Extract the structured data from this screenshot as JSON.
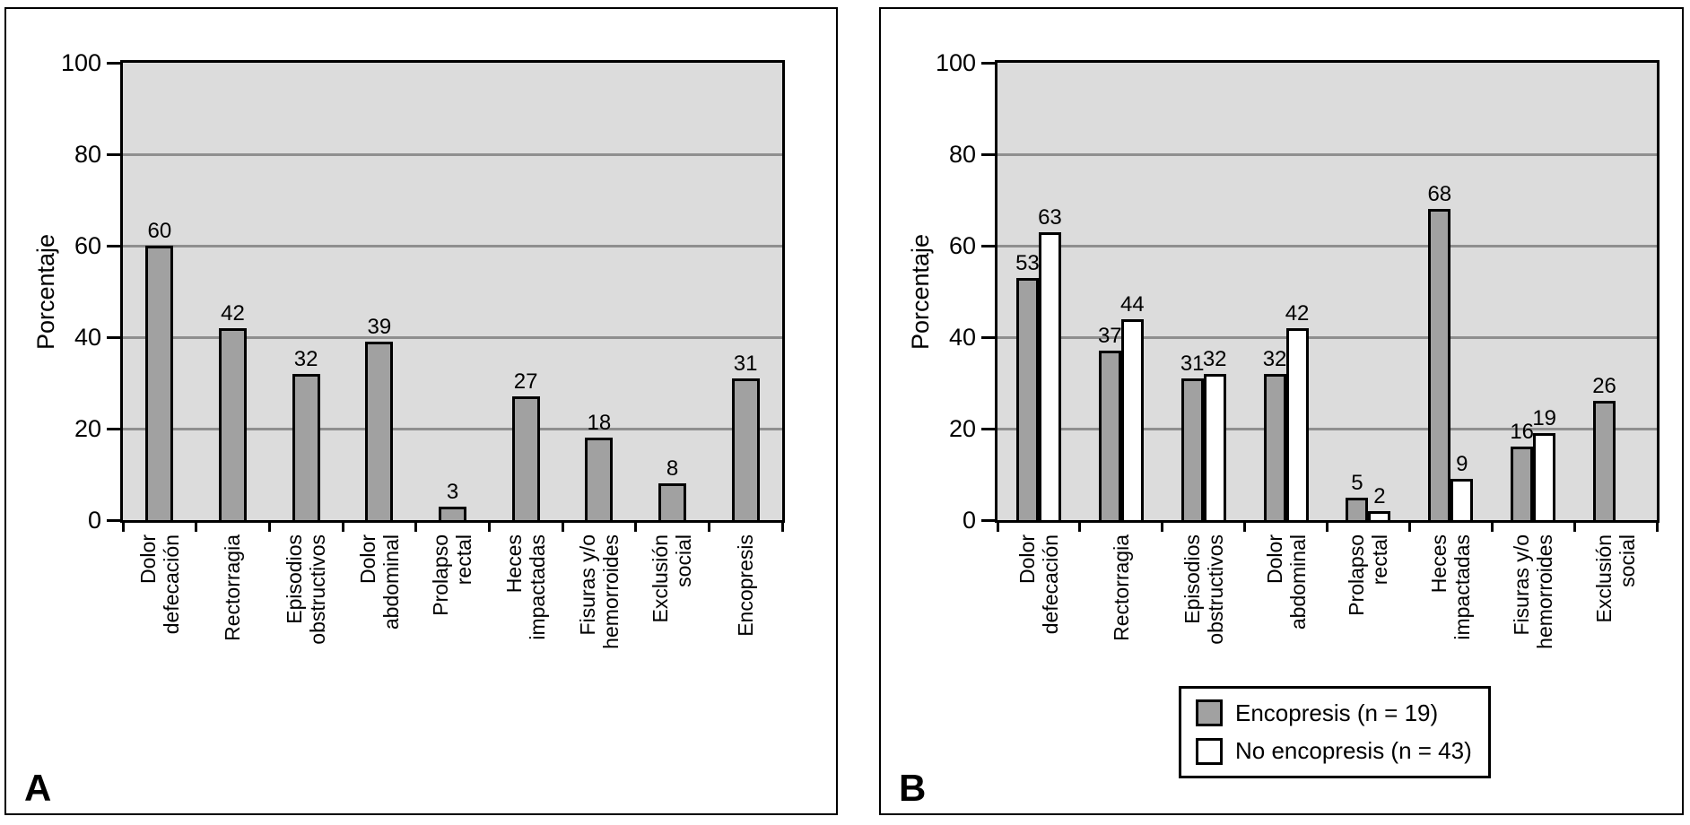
{
  "figure": {
    "panels": [
      {
        "letter": "A"
      },
      {
        "letter": "B"
      }
    ]
  },
  "colors": {
    "plot_background": "#dcdcdc",
    "gridline": "#8f8f8f",
    "bar_gray": "#a1a1a1",
    "bar_white": "#ffffff",
    "axis": "#000000"
  },
  "chart_data": [
    {
      "type": "bar",
      "panel": "A",
      "ylabel": "Porcentaje",
      "ylim": [
        0,
        100
      ],
      "yticks": [
        0,
        20,
        40,
        60,
        80,
        100
      ],
      "grid": "horizontal",
      "legend_position": "none",
      "categories": [
        "Dolor defecación",
        "Rectorragia",
        "Episodios obstructivos",
        "Dolor abdominal",
        "Prolapso rectal",
        "Heces impactadas",
        "Fisuras y/o hemorroides",
        "Exclusión social",
        "Encopresis"
      ],
      "label_lines": [
        [
          "Dolor",
          "defecación"
        ],
        [
          "Rectorragia"
        ],
        [
          "Episodios",
          "obstructivos"
        ],
        [
          "Dolor",
          "abdominal"
        ],
        [
          "Prolapso",
          "rectal"
        ],
        [
          "Heces",
          "impactadas"
        ],
        [
          "Fisuras y/o",
          "hemorroides"
        ],
        [
          "Exclusión",
          "social"
        ],
        [
          "Encopresis"
        ]
      ],
      "values": [
        60,
        42,
        32,
        39,
        3,
        27,
        18,
        8,
        31
      ],
      "bar_color": "#a1a1a1"
    },
    {
      "type": "bar",
      "panel": "B",
      "ylabel": "Porcentaje",
      "ylim": [
        0,
        100
      ],
      "yticks": [
        0,
        20,
        40,
        60,
        80,
        100
      ],
      "grid": "horizontal",
      "legend_position": "bottom-right",
      "categories": [
        "Dolor defecación",
        "Rectorragia",
        "Episodios obstructivos",
        "Dolor abdominal",
        "Prolapso rectal",
        "Heces impactadas",
        "Fisuras y/o hemorroides",
        "Exclusión social"
      ],
      "label_lines": [
        [
          "Dolor",
          "defecación"
        ],
        [
          "Rectorragia"
        ],
        [
          "Episodios",
          "obstructivos"
        ],
        [
          "Dolor",
          "abdominal"
        ],
        [
          "Prolapso",
          "rectal"
        ],
        [
          "Heces",
          "impactadas"
        ],
        [
          "Fisuras y/o",
          "hemorroides"
        ],
        [
          "Exclusión",
          "social"
        ]
      ],
      "series": [
        {
          "name": "Encopresis (n = 19)",
          "color": "#a1a1a1",
          "values": [
            53,
            37,
            31,
            32,
            5,
            68,
            16,
            26
          ]
        },
        {
          "name": "No encopresis (n = 43)",
          "color": "#ffffff",
          "values": [
            63,
            44,
            32,
            42,
            2,
            9,
            19,
            null
          ]
        }
      ]
    }
  ]
}
